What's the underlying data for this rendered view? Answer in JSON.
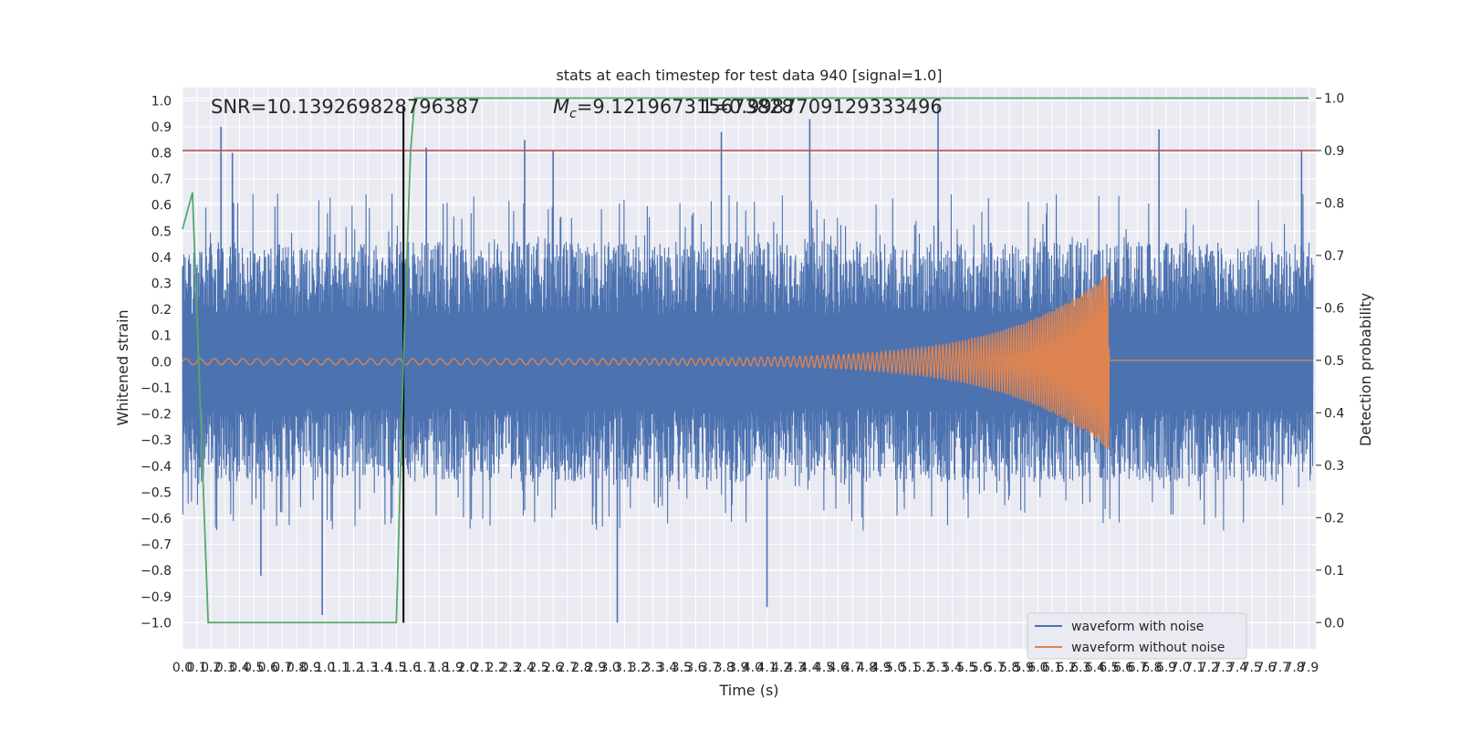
{
  "chart_data": {
    "type": "line",
    "title": "stats at each timestep for test data 940 [signal=1.0]",
    "xlabel": "Time (s)",
    "ylabel": "Whitened strain",
    "y2label": "Detection probability",
    "xlim": [
      0.0,
      7.95
    ],
    "ylim": [
      -1.1,
      1.05
    ],
    "y2lim": [
      -0.05,
      1.02
    ],
    "x_ticks": [
      0.0,
      0.1,
      0.2,
      0.3,
      0.4,
      0.5,
      0.6,
      0.7,
      0.8,
      0.9,
      1.0,
      1.1,
      1.2,
      1.3,
      1.4,
      1.5,
      1.6,
      1.7,
      1.8,
      1.9,
      2.0,
      2.1,
      2.2,
      2.3,
      2.4,
      2.5,
      2.6,
      2.7,
      2.8,
      2.9,
      3.0,
      3.1,
      3.2,
      3.3,
      3.4,
      3.5,
      3.6,
      3.7,
      3.8,
      3.9,
      4.0,
      4.1,
      4.2,
      4.3,
      4.4,
      4.5,
      4.6,
      4.7,
      4.8,
      4.9,
      5.0,
      5.1,
      5.2,
      5.3,
      5.4,
      5.5,
      5.6,
      5.7,
      5.8,
      5.9,
      6.0,
      6.1,
      6.2,
      6.3,
      6.4,
      6.5,
      6.6,
      6.7,
      6.8,
      6.9,
      7.0,
      7.1,
      7.2,
      7.3,
      7.4,
      7.5,
      7.6,
      7.7,
      7.8,
      7.9
    ],
    "x_tick_labels": [
      "0.0",
      "0.1",
      "0.2",
      "0.3",
      "0.4",
      "0.5",
      "0.6",
      "0.7",
      "0.8",
      "0.9",
      "1.0",
      "1.1",
      "1.2",
      "1.3",
      "1.4",
      "1.5",
      "1.6",
      "1.7",
      "1.8",
      "1.9",
      "2.0",
      "2.1",
      "2.2",
      "2.3",
      "2.4",
      "2.5",
      "2.6",
      "2.7",
      "2.8",
      "2.9",
      "3.0",
      "3.1",
      "3.2",
      "3.3",
      "3.4",
      "3.5",
      "3.6",
      "3.7",
      "3.8",
      "3.9",
      "4.0",
      "4.1",
      "4.2",
      "4.3",
      "4.4",
      "4.5",
      "4.6",
      "4.7",
      "4.8",
      "4.9",
      "5.0",
      "5.1",
      "5.2",
      "5.3",
      "5.4",
      "5.5",
      "5.6",
      "5.7",
      "5.8",
      "5.9",
      "6.0",
      "6.1",
      "6.2",
      "6.3",
      "6.4",
      "6.5",
      "6.6",
      "6.7",
      "6.8",
      "6.9",
      "7.0",
      "7.1",
      "7.2",
      "7.3",
      "7.4",
      "7.5",
      "7.6",
      "7.7",
      "7.8",
      "7.9"
    ],
    "y_ticks": [
      -1.0,
      -0.9,
      -0.8,
      -0.7,
      -0.6,
      -0.5,
      -0.4,
      -0.3,
      -0.2,
      -0.1,
      0.0,
      0.1,
      0.2,
      0.3,
      0.4,
      0.5,
      0.6,
      0.7,
      0.8,
      0.9,
      1.0
    ],
    "y_tick_labels": [
      "−1.0",
      "−0.9",
      "−0.8",
      "−0.7",
      "−0.6",
      "−0.5",
      "−0.4",
      "−0.3",
      "−0.2",
      "−0.1",
      "0.0",
      "0.1",
      "0.2",
      "0.3",
      "0.4",
      "0.5",
      "0.6",
      "0.7",
      "0.8",
      "0.9",
      "1.0"
    ],
    "y2_ticks": [
      0.0,
      0.1,
      0.2,
      0.3,
      0.4,
      0.5,
      0.6,
      0.7,
      0.8,
      0.9,
      1.0
    ],
    "y2_tick_labels": [
      "0.0",
      "0.1",
      "0.2",
      "0.3",
      "0.4",
      "0.5",
      "0.6",
      "0.7",
      "0.8",
      "0.9",
      "1.0"
    ],
    "grid": true,
    "legend_position": "lower-right",
    "series": [
      {
        "name": "waveform with noise",
        "color": "#4c72b0",
        "noise_envelope": 0.6,
        "peaks": [
          [
            0.27,
            0.9
          ],
          [
            0.35,
            0.8
          ],
          [
            0.55,
            -0.82
          ],
          [
            0.98,
            -0.97
          ],
          [
            1.71,
            0.82
          ],
          [
            2.4,
            0.85
          ],
          [
            2.6,
            0.81
          ],
          [
            3.05,
            -1.0
          ],
          [
            3.78,
            0.88
          ],
          [
            4.1,
            -0.94
          ],
          [
            4.4,
            0.93
          ],
          [
            5.3,
            0.98
          ],
          [
            6.85,
            0.89
          ],
          [
            7.85,
            0.81
          ]
        ]
      },
      {
        "name": "waveform without noise",
        "color": "#dd8452",
        "chirp": {
          "t_start": 0.0,
          "t_merge": 6.5,
          "f_start": 10,
          "f_end": 80,
          "amp_start": 0.012,
          "amp_peak": 0.34
        }
      },
      {
        "name": "detection probability",
        "color": "#55a868",
        "axis": "right",
        "x": [
          0.0,
          0.07,
          0.12,
          0.18,
          0.25,
          1.0,
          1.5,
          1.55,
          1.6,
          1.63,
          7.9
        ],
        "values": [
          0.75,
          0.82,
          0.45,
          0.0,
          0.0,
          0.0,
          0.0,
          0.5,
          0.9,
          1.0,
          1.0
        ]
      }
    ],
    "threshold": {
      "axis": "right",
      "value": 0.9,
      "color": "#c44e52"
    },
    "vertical_line": {
      "x": 1.55,
      "y_range": [
        -1.0,
        0.98
      ],
      "color": "#000000"
    },
    "annotations": [
      {
        "text": "SNR=10.139269828796387",
        "x": 0.2,
        "y": 1.0
      },
      {
        "text": "M",
        "sub": "c",
        "rest": "=9.121967315673828",
        "x": 2.6,
        "y": 1.0
      },
      {
        "text": "1=0.9987709129333496",
        "x": 3.6,
        "y": 1.0
      }
    ]
  }
}
